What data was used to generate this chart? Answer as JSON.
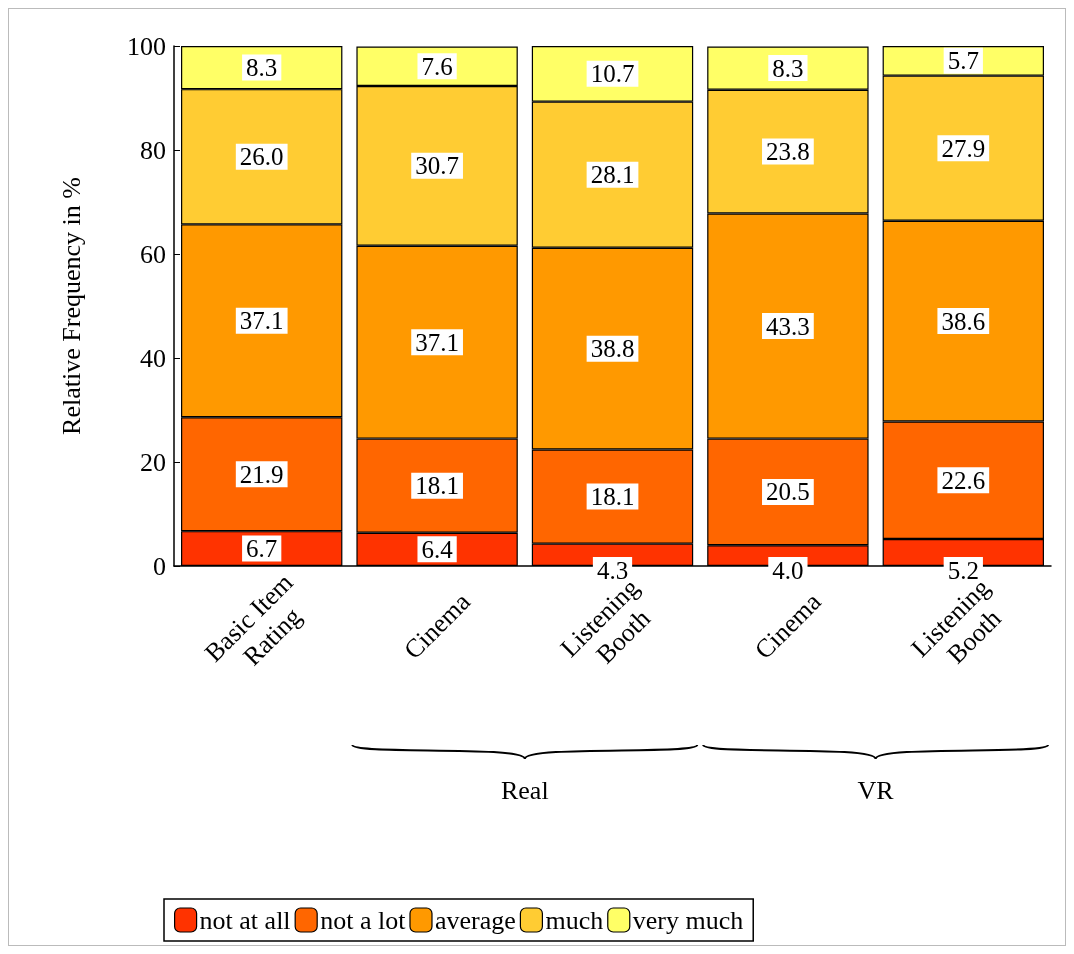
{
  "chart_data": {
    "type": "bar",
    "stacked": true,
    "ylabel": "Relative Frequency in %",
    "categories": [
      "Basic Item Rating",
      "Cinema",
      "Listening Booth",
      "Cinema",
      "Listening Booth"
    ],
    "series": [
      {
        "name": "not at all",
        "color": "#ff3300",
        "values": [
          6.7,
          6.4,
          4.3,
          4.0,
          5.2
        ],
        "value_labels": [
          "6.7",
          "6.4",
          "4.3",
          "4.0",
          "5.2"
        ]
      },
      {
        "name": "not a lot",
        "color": "#ff6600",
        "values": [
          21.9,
          18.1,
          18.1,
          20.5,
          22.6
        ],
        "value_labels": [
          "21.9",
          "18.1",
          "18.1",
          "20.5",
          "22.6"
        ]
      },
      {
        "name": "average",
        "color": "#ff9900",
        "values": [
          37.1,
          37.1,
          38.8,
          43.3,
          38.6
        ],
        "value_labels": [
          "37.1",
          "37.1",
          "38.8",
          "43.3",
          "38.6"
        ]
      },
      {
        "name": "much",
        "color": "#ffcc33",
        "values": [
          26.0,
          30.7,
          28.1,
          23.8,
          27.9
        ],
        "value_labels": [
          "26.0",
          "30.7",
          "28.1",
          "23.8",
          "27.9"
        ]
      },
      {
        "name": "very much",
        "color": "#ffff66",
        "values": [
          8.3,
          7.6,
          10.7,
          8.3,
          5.7
        ],
        "value_labels": [
          "8.3",
          "7.6",
          "10.7",
          "8.3",
          "5.7"
        ]
      }
    ],
    "ylim": [
      0,
      100
    ],
    "yticks": [
      0,
      20,
      40,
      60,
      80,
      100
    ],
    "grid": false,
    "legend": "bottom",
    "annotations": [
      "Real",
      "VR"
    ]
  }
}
